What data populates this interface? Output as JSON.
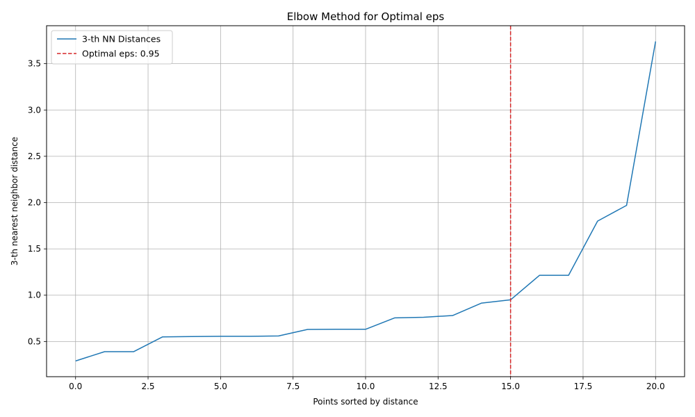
{
  "chart_data": {
    "type": "line",
    "title": "Elbow Method for Optimal eps",
    "xlabel": "Points sorted by distance",
    "ylabel": "3-th nearest neighbor distance",
    "xlim": [
      -1.0,
      21.0
    ],
    "ylim": [
      0.12,
      3.91
    ],
    "xticks": [
      0.0,
      2.5,
      5.0,
      7.5,
      10.0,
      12.5,
      15.0,
      17.5,
      20.0
    ],
    "xtick_labels": [
      "0.0",
      "2.5",
      "5.0",
      "7.5",
      "10.0",
      "12.5",
      "15.0",
      "17.5",
      "20.0"
    ],
    "yticks": [
      0.5,
      1.0,
      1.5,
      2.0,
      2.5,
      3.0,
      3.5
    ],
    "ytick_labels": [
      "0.5",
      "1.0",
      "1.5",
      "2.0",
      "2.5",
      "3.0",
      "3.5"
    ],
    "grid": true,
    "legend_position": "top-left",
    "series": [
      {
        "name": "3-th NN Distances",
        "color": "#1f77b4",
        "style": "solid",
        "x": [
          0,
          1,
          2,
          3,
          4,
          5,
          6,
          7,
          8,
          9,
          10,
          11,
          12,
          13,
          14,
          15,
          16,
          17,
          18,
          19,
          20
        ],
        "y": [
          0.29,
          0.39,
          0.39,
          0.55,
          0.553,
          0.556,
          0.556,
          0.56,
          0.63,
          0.632,
          0.632,
          0.755,
          0.762,
          0.78,
          0.915,
          0.95,
          1.215,
          1.215,
          1.8,
          1.97,
          3.74
        ]
      }
    ],
    "vlines": [
      {
        "name": "Optimal eps: 0.95",
        "x": 15,
        "color": "#d62728",
        "style": "dashed"
      }
    ]
  }
}
